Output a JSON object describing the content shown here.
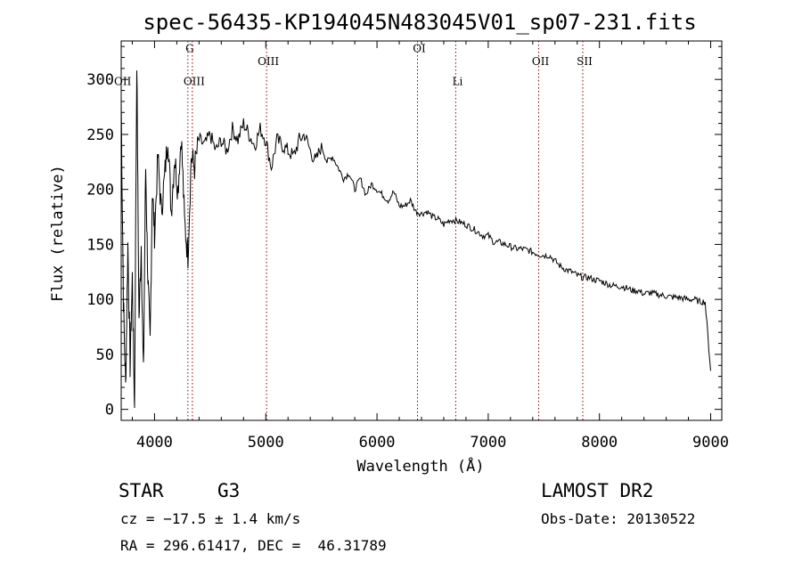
{
  "chart_data": {
    "type": "line",
    "title": "spec-56435-KP194045N483045V01_sp07-231.fits",
    "xlabel": "Wavelength (Å)",
    "ylabel": "Flux (relative)",
    "xlim": [
      3700,
      9100
    ],
    "ylim": [
      -10,
      335
    ],
    "xticks": [
      4000,
      5000,
      6000,
      7000,
      8000,
      9000
    ],
    "yticks": [
      0,
      50,
      100,
      150,
      200,
      250,
      300
    ],
    "grid": false,
    "series": [
      {
        "x": [
          3700,
          3720,
          3740,
          3760,
          3780,
          3800,
          3820,
          3840,
          3860,
          3880,
          3900,
          3920,
          3940,
          3960,
          3980,
          4000,
          4030,
          4060,
          4090,
          4120,
          4150,
          4180,
          4210,
          4240,
          4270,
          4300,
          4330,
          4360,
          4400,
          4450,
          4500,
          4550,
          4600,
          4650,
          4700,
          4750,
          4800,
          4850,
          4900,
          4950,
          5000,
          5050,
          5100,
          5150,
          5200,
          5250,
          5300,
          5350,
          5400,
          5450,
          5500,
          5550,
          5600,
          5650,
          5700,
          5750,
          5800,
          5850,
          5900,
          5950,
          6000,
          6050,
          6100,
          6150,
          6200,
          6250,
          6300,
          6350,
          6400,
          6450,
          6500,
          6550,
          6600,
          6650,
          6700,
          6750,
          6800,
          6850,
          6900,
          6950,
          7000,
          7050,
          7100,
          7150,
          7200,
          7250,
          7300,
          7350,
          7400,
          7450,
          7500,
          7550,
          7600,
          7650,
          7700,
          7750,
          7800,
          7850,
          7900,
          7950,
          8000,
          8050,
          8100,
          8150,
          8200,
          8250,
          8300,
          8350,
          8400,
          8450,
          8500,
          8550,
          8600,
          8650,
          8700,
          8750,
          8800,
          8850,
          8900,
          8950,
          9000
        ],
        "y": [
          280,
          100,
          20,
          150,
          40,
          120,
          0,
          320,
          80,
          150,
          30,
          220,
          120,
          60,
          200,
          160,
          230,
          180,
          210,
          250,
          180,
          230,
          200,
          250,
          170,
          140,
          230,
          220,
          245,
          240,
          250,
          235,
          245,
          235,
          255,
          245,
          260,
          250,
          240,
          255,
          245,
          220,
          245,
          240,
          235,
          230,
          245,
          250,
          235,
          225,
          240,
          225,
          230,
          220,
          210,
          215,
          200,
          210,
          195,
          205,
          200,
          195,
          190,
          198,
          185,
          185,
          190,
          180,
          178,
          180,
          175,
          173,
          168,
          172,
          172,
          170,
          168,
          165,
          162,
          158,
          158,
          152,
          152,
          150,
          148,
          146,
          146,
          145,
          143,
          141,
          140,
          140,
          135,
          130,
          127,
          125,
          122,
          120,
          120,
          118,
          117,
          115,
          113,
          112,
          112,
          110,
          108,
          108,
          105,
          106,
          105,
          104,
          103,
          102,
          102,
          101,
          100,
          100,
          98,
          98,
          35
        ]
      }
    ],
    "lines": [
      {
        "x": 4300,
        "label": "G",
        "label_y": 325
      },
      {
        "x": 4340,
        "label": "OIII",
        "label_y": 295
      },
      {
        "x": 5007,
        "label": "OIII",
        "label_y": 313
      },
      {
        "x": 6364,
        "label": "OI",
        "label_y": 325
      },
      {
        "x": 6708,
        "label": "Li",
        "label_y": 295
      },
      {
        "x": 7454,
        "label": "OII",
        "label_y": 313
      },
      {
        "x": 7850,
        "label": "SII",
        "label_y": 313
      }
    ],
    "edge_label": {
      "text": "OII",
      "label_y": 295
    }
  },
  "info": {
    "class": "STAR",
    "subclass": "G3",
    "survey": "LAMOST DR2",
    "cz": "cz = −17.5 ± 1.4 km/s",
    "obs_date": "Obs-Date: 20130522",
    "coords": "RA = 296.61417, DEC =  46.31789"
  }
}
